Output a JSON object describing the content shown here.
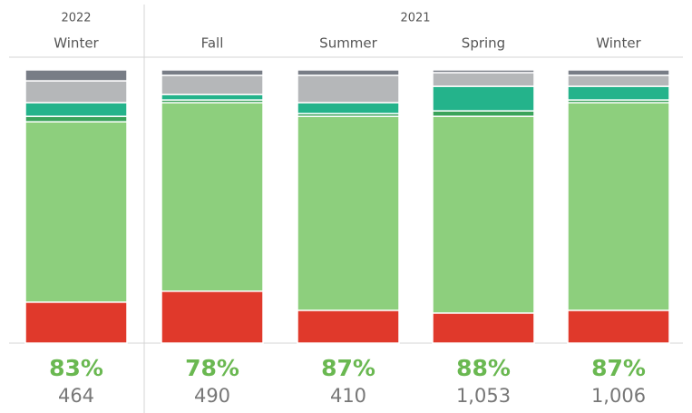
{
  "chart_data": {
    "type": "bar",
    "stacked": true,
    "groups": [
      {
        "label": "2022",
        "span": 1
      },
      {
        "label": "2021",
        "span": 4
      }
    ],
    "categories": [
      "Winter",
      "Fall",
      "Summer",
      "Spring",
      "Winter"
    ],
    "ylim": [
      0,
      100
    ],
    "series": [
      {
        "color": "#e0392b",
        "values": [
          15,
          19,
          12,
          11,
          12
        ]
      },
      {
        "color": "#8dcf7d",
        "values": [
          66,
          69,
          71,
          72,
          76
        ]
      },
      {
        "color": "#3aa35b",
        "values": [
          2,
          1,
          1,
          2,
          1
        ]
      },
      {
        "color": "#24b38b",
        "values": [
          5,
          2,
          4,
          9,
          5
        ]
      },
      {
        "color": "#b5b7b9",
        "values": [
          8,
          7,
          10,
          5,
          4
        ]
      },
      {
        "color": "#787d86",
        "values": [
          4,
          2,
          2,
          1,
          2
        ]
      }
    ],
    "shares": [
      83,
      78,
      87,
      88,
      87
    ],
    "share_labels": [
      "83%",
      "78%",
      "87%",
      "88%",
      "87%"
    ],
    "share_color": "#6ab851",
    "counts": [
      464,
      490,
      410,
      1053,
      1006
    ],
    "count_labels": [
      "464",
      "490",
      "410",
      "1,053",
      "1,006"
    ]
  }
}
